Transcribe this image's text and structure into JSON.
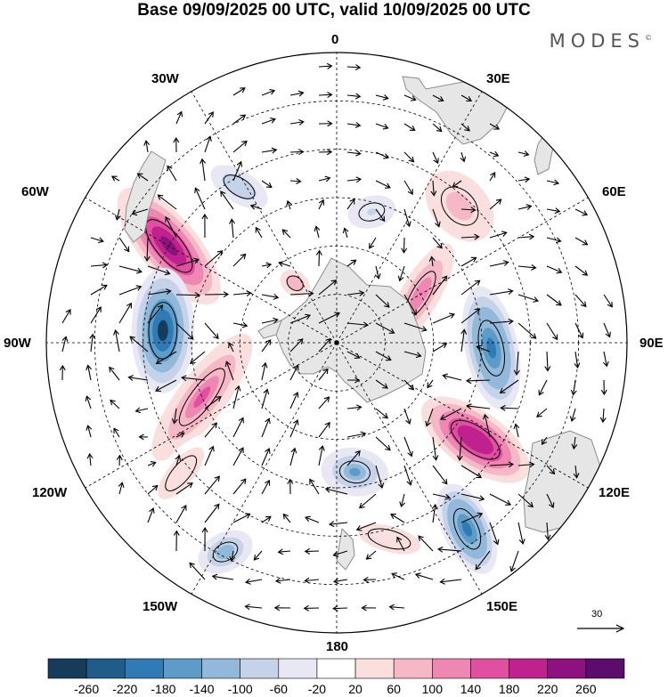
{
  "title": "Base 09/09/2025 00 UTC, valid 10/09/2025 00 UTC",
  "brand": "MODES",
  "brand_mark": "©",
  "longitude_labels": {
    "lon_0": "0",
    "lon_30e": "30E",
    "lon_60e": "60E",
    "lon_90e": "90E",
    "lon_120e": "120E",
    "lon_150e": "150E",
    "lon_180": "180",
    "lon_150w": "150W",
    "lon_120w": "120W",
    "lon_90w": "90W",
    "lon_60w": "60W",
    "lon_30w": "30W"
  },
  "vector_scale": {
    "label": "30",
    "icon": "arrow-right-icon"
  },
  "colorbar": {
    "ticks": [
      "-260",
      "-220",
      "-180",
      "-140",
      "-100",
      "-60",
      "-20",
      "20",
      "60",
      "100",
      "140",
      "180",
      "220",
      "260"
    ],
    "colors": [
      "#173b5a",
      "#1f5c89",
      "#2f7bb5",
      "#5d9cc9",
      "#93b9da",
      "#c5d2e8",
      "#e7e8f3",
      "#ffffff",
      "#fbdede",
      "#f6b8c6",
      "#ee87b2",
      "#e14fa0",
      "#bf228f",
      "#8d117f",
      "#5c0c6c"
    ]
  },
  "colors": {
    "land": "#e6e6e6",
    "coast": "#8c8c8c",
    "grid": "#000000",
    "arrow": "#000000"
  },
  "fields": {
    "neg": [
      {
        "lon": -86,
        "lat": -54,
        "amp": 260,
        "a": 13,
        "b": 6.5,
        "rot": 5
      },
      {
        "lon": 92,
        "lat": -58,
        "amp": 200,
        "a": 13,
        "b": 5.5,
        "rot": -10
      },
      {
        "lon": 145,
        "lat": -43,
        "amp": 200,
        "a": 10,
        "b": 5,
        "rot": 30
      },
      {
        "lon": 172,
        "lat": -63,
        "amp": 140,
        "a": 7,
        "b": 5,
        "rot": 0
      },
      {
        "lon": -152,
        "lat": -41,
        "amp": 120,
        "a": 6,
        "b": 4,
        "rot": 0
      },
      {
        "lon": -32,
        "lat": -52,
        "amp": 90,
        "a": 8,
        "b": 4,
        "rot": 0
      },
      {
        "lon": 15,
        "lat": -62,
        "amp": 60,
        "a": 6,
        "b": 4,
        "rot": 0
      }
    ],
    "pos": [
      {
        "lon": -60,
        "lat": -50,
        "amp": 260,
        "a": 15,
        "b": 6,
        "rot": -10
      },
      {
        "lon": 125,
        "lat": -55,
        "amp": 220,
        "a": 13,
        "b": 6,
        "rot": -20
      },
      {
        "lon": 60,
        "lat": -70,
        "amp": 140,
        "a": 12,
        "b": 4,
        "rot": 0
      },
      {
        "lon": -112,
        "lat": -60,
        "amp": 150,
        "a": 16,
        "b": 5,
        "rot": 15
      },
      {
        "lon": 42,
        "lat": -52,
        "amp": 80,
        "a": 7,
        "b": 10,
        "rot": 0
      },
      {
        "lon": -130,
        "lat": -48,
        "amp": 60,
        "a": 10,
        "b": 4,
        "rot": 0
      },
      {
        "lon": -35,
        "lat": -75,
        "amp": 100,
        "a": 4,
        "b": 3,
        "rot": 0
      },
      {
        "lon": 165,
        "lat": -48,
        "amp": 60,
        "a": 10,
        "b": 4,
        "rot": 0
      }
    ]
  }
}
